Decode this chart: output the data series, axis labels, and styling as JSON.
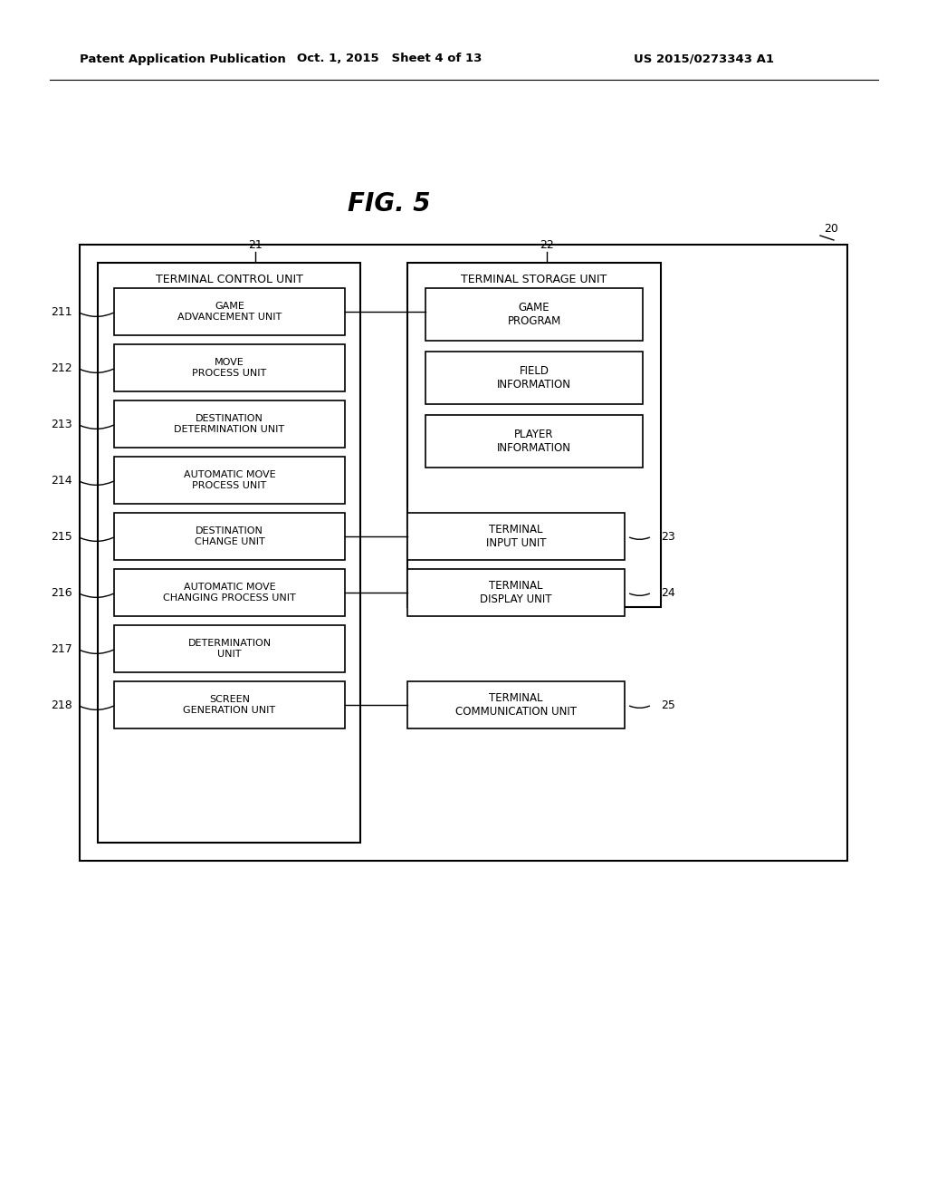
{
  "title": "FIG. 5",
  "header_left": "Patent Application Publication",
  "header_mid": "Oct. 1, 2015   Sheet 4 of 13",
  "header_right": "US 2015/0273343 A1",
  "bg_color": "#ffffff",
  "label_20": "20",
  "label_21": "21",
  "label_22": "22",
  "left_units": [
    {
      "id": "211",
      "label": "GAME\nADVANCEMENT UNIT"
    },
    {
      "id": "212",
      "label": "MOVE\nPROCESS UNIT"
    },
    {
      "id": "213",
      "label": "DESTINATION\nDETERMINATION UNIT"
    },
    {
      "id": "214",
      "label": "AUTOMATIC MOVE\nPROCESS UNIT"
    },
    {
      "id": "215",
      "label": "DESTINATION\nCHANGE UNIT"
    },
    {
      "id": "216",
      "label": "AUTOMATIC MOVE\nCHANGING PROCESS UNIT"
    },
    {
      "id": "217",
      "label": "DETERMINATION\nUNIT"
    },
    {
      "id": "218",
      "label": "SCREEN\nGENERATION UNIT"
    }
  ],
  "storage_units": [
    {
      "label": "GAME\nPROGRAM"
    },
    {
      "label": "FIELD\nINFORMATION"
    },
    {
      "label": "PLAYER\nINFORMATION"
    }
  ],
  "right_units": [
    {
      "id": "23",
      "label": "TERMINAL\nINPUT UNIT"
    },
    {
      "id": "24",
      "label": "TERMINAL\nDISPLAY UNIT"
    },
    {
      "id": "25",
      "label": "TERMINAL\nCOMMUNICATION UNIT"
    }
  ]
}
